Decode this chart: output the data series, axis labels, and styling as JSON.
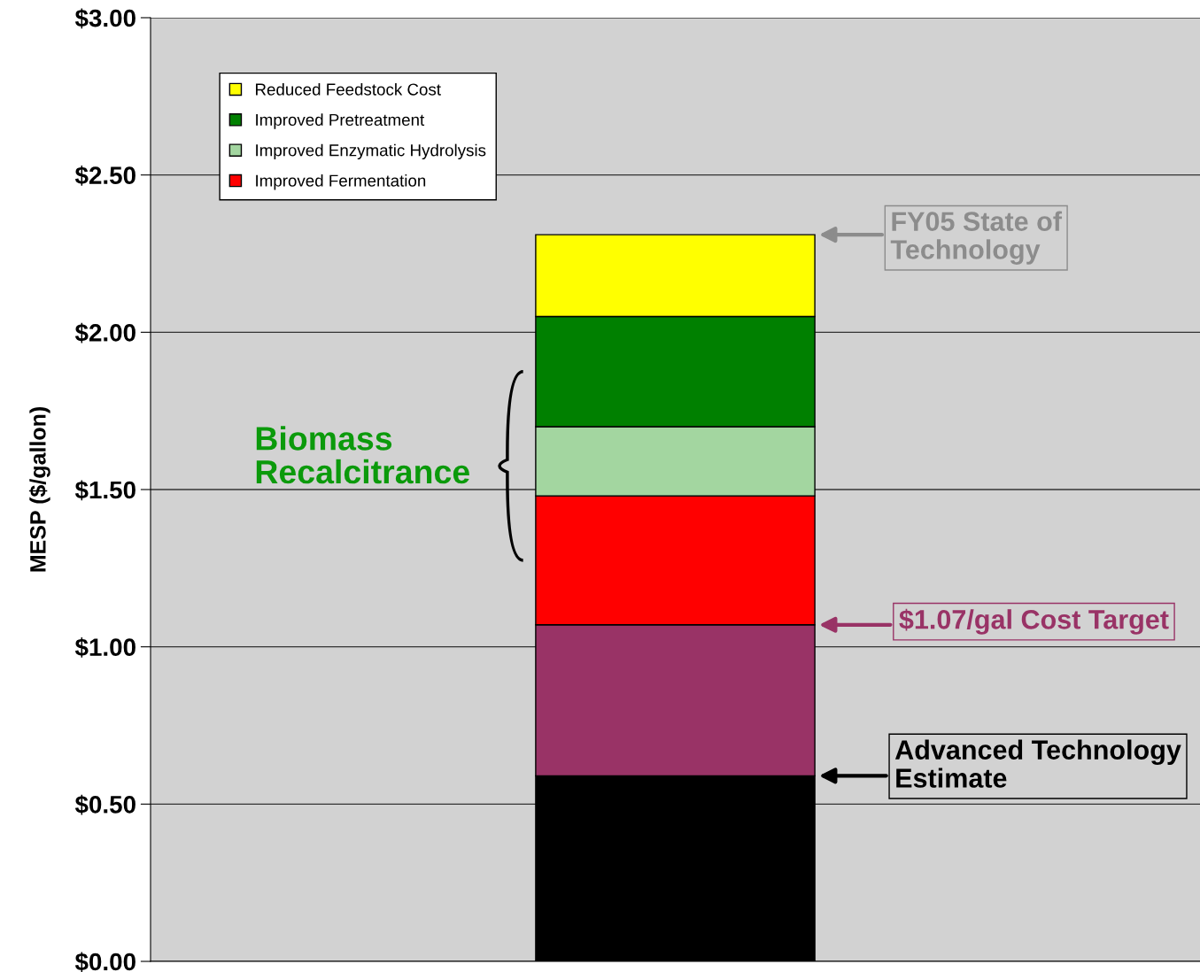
{
  "chart_data": {
    "type": "bar",
    "stacked": true,
    "ylabel": "MESP ($/gallon)",
    "categories": [
      null
    ],
    "series": [
      {
        "color": "#000000",
        "values": [
          0.59
        ]
      },
      {
        "color": "#993366",
        "values": [
          0.48
        ]
      },
      {
        "name": "Improved Fermentation",
        "color": "#ff0000",
        "values": [
          0.41
        ]
      },
      {
        "name": "Improved Enzymatic Hydrolysis",
        "color": "#a3d6a0",
        "values": [
          0.22
        ]
      },
      {
        "name": "Improved Pretreatment",
        "color": "#008000",
        "values": [
          0.35
        ]
      },
      {
        "name": "Reduced Feedstock Cost",
        "color": "#ffff00",
        "values": [
          0.26
        ]
      }
    ],
    "ylim": [
      0,
      3
    ],
    "yticks": [
      {
        "value": 0,
        "label": "$0.00"
      },
      {
        "value": 0.5,
        "label": "$0.50"
      },
      {
        "value": 1,
        "label": "$1.00"
      },
      {
        "value": 1.5,
        "label": "$1.50"
      },
      {
        "value": 2,
        "label": "$2.00"
      },
      {
        "value": 2.5,
        "label": "$2.50"
      },
      {
        "value": 3,
        "label": "$3.00"
      }
    ],
    "grid": "y",
    "legend": "top left",
    "annotations": [
      "FY05 State of\nTechnology",
      "$1.07/gal Cost Target",
      "Advanced Technology\nEstimate",
      "Biomass\nRecalcitrance"
    ]
  }
}
